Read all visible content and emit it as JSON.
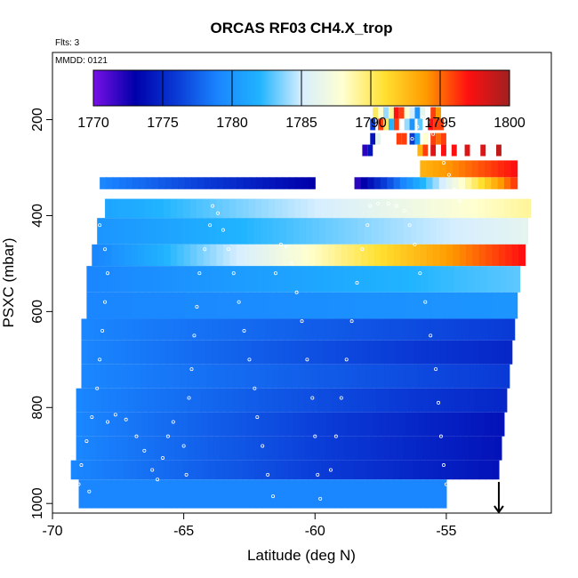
{
  "chart_data": {
    "type": "heatmap",
    "title": "ORCAS RF03 CH4.X_trop",
    "flights_note": "Flts: 3",
    "date_note": "MMDD: 0121",
    "xlabel": "Latitude (deg N)",
    "ylabel": "PSXC (mbar)",
    "xlim": [
      -70,
      -51
    ],
    "ylim": [
      1020,
      60
    ],
    "x_ticks": [
      -70,
      -65,
      -60,
      -55
    ],
    "y_ticks": [
      200,
      400,
      600,
      800,
      1000
    ],
    "colorbar": {
      "range": [
        1770,
        1800
      ],
      "ticks": [
        1770,
        1775,
        1780,
        1785,
        1790,
        1795,
        1800
      ],
      "colors": [
        "#7a10e6",
        "#0000aa",
        "#0a3ad6",
        "#1a86ff",
        "#20b4ff",
        "#d6eeff",
        "#ffffd0",
        "#ffe030",
        "#ff9a00",
        "#ff1010",
        "#a02020"
      ]
    },
    "bands": [
      {
        "p_top": 320,
        "p_bot": 345,
        "x_start": -68.2,
        "x_end": -60.0,
        "v_start": 1779.0,
        "v_end": 1773.0
      },
      {
        "p_top": 320,
        "p_bot": 345,
        "x_start": -58.5,
        "x_end": -52.3,
        "v_start": 1772.0,
        "v_end": 1796.0
      },
      {
        "p_top": 285,
        "p_bot": 320,
        "x_start": -56.0,
        "x_end": -52.3,
        "v_start": 1793.0,
        "v_end": 1797.0
      },
      {
        "p_top": 365,
        "p_bot": 405,
        "x_start": -68.0,
        "x_end": -51.8,
        "v_start": 1781.0,
        "v_end": 1789.0
      },
      {
        "p_top": 405,
        "p_bot": 460,
        "x_start": -68.3,
        "x_end": -51.9,
        "v_start": 1780.0,
        "v_end": 1786.0
      },
      {
        "p_top": 460,
        "p_bot": 505,
        "x_start": -68.5,
        "x_end": -52.0,
        "v_start": 1779.0,
        "v_end": 1797.0
      },
      {
        "p_top": 505,
        "p_bot": 560,
        "x_start": -68.7,
        "x_end": -52.2,
        "v_start": 1779.0,
        "v_end": 1783.0
      },
      {
        "p_top": 560,
        "p_bot": 615,
        "x_start": -68.7,
        "x_end": -52.3,
        "v_start": 1779.0,
        "v_end": 1780.0
      },
      {
        "p_top": 615,
        "p_bot": 660,
        "x_start": -68.9,
        "x_end": -52.4,
        "v_start": 1779.0,
        "v_end": 1776.0
      },
      {
        "p_top": 660,
        "p_bot": 710,
        "x_start": -68.9,
        "x_end": -52.5,
        "v_start": 1779.0,
        "v_end": 1775.0
      },
      {
        "p_top": 710,
        "p_bot": 760,
        "x_start": -68.9,
        "x_end": -52.6,
        "v_start": 1779.0,
        "v_end": 1776.0
      },
      {
        "p_top": 760,
        "p_bot": 810,
        "x_start": -69.1,
        "x_end": -52.7,
        "v_start": 1779.0,
        "v_end": 1775.0
      },
      {
        "p_top": 810,
        "p_bot": 860,
        "x_start": -69.1,
        "x_end": -52.8,
        "v_start": 1779.0,
        "v_end": 1774.0
      },
      {
        "p_top": 860,
        "p_bot": 910,
        "x_start": -69.1,
        "x_end": -52.9,
        "v_start": 1779.0,
        "v_end": 1774.0
      },
      {
        "p_top": 910,
        "p_bot": 950,
        "x_start": -69.3,
        "x_end": -53.0,
        "v_start": 1779.0,
        "v_end": 1774.0
      },
      {
        "p_top": 950,
        "p_bot": 1010,
        "x_start": -69.0,
        "x_end": -55.0,
        "v_start": 1779.0,
        "v_end": 1779.0
      }
    ],
    "cells": [
      {
        "x": -57.7,
        "p": 186,
        "v": 1790
      },
      {
        "x": -57.5,
        "p": 186,
        "v": 1788
      },
      {
        "x": -57.3,
        "p": 186,
        "v": 1784
      },
      {
        "x": -57.1,
        "p": 186,
        "v": 1789
      },
      {
        "x": -56.9,
        "p": 186,
        "v": 1797
      },
      {
        "x": -56.7,
        "p": 186,
        "v": 1796
      },
      {
        "x": -56.5,
        "p": 186,
        "v": 1788
      },
      {
        "x": -56.3,
        "p": 186,
        "v": 1785
      },
      {
        "x": -56.1,
        "p": 186,
        "v": 1780
      },
      {
        "x": -55.9,
        "p": 186,
        "v": 1786
      },
      {
        "x": -55.5,
        "p": 186,
        "v": 1796
      },
      {
        "x": -55.3,
        "p": 186,
        "v": 1794
      },
      {
        "x": -57.8,
        "p": 210,
        "v": 1776
      },
      {
        "x": -57.5,
        "p": 210,
        "v": 1796
      },
      {
        "x": -57.3,
        "p": 210,
        "v": 1790
      },
      {
        "x": -57.1,
        "p": 210,
        "v": 1782
      },
      {
        "x": -56.9,
        "p": 210,
        "v": 1796
      },
      {
        "x": -56.5,
        "p": 210,
        "v": 1784
      },
      {
        "x": -56.3,
        "p": 210,
        "v": 1780
      },
      {
        "x": -56.0,
        "p": 210,
        "v": 1783
      },
      {
        "x": -55.6,
        "p": 210,
        "v": 1797
      },
      {
        "x": -55.4,
        "p": 210,
        "v": 1796
      },
      {
        "x": -55.2,
        "p": 210,
        "v": 1796
      },
      {
        "x": -57.8,
        "p": 240,
        "v": 1774
      },
      {
        "x": -57.6,
        "p": 240,
        "v": 1786
      },
      {
        "x": -56.8,
        "p": 240,
        "v": 1796
      },
      {
        "x": -56.6,
        "p": 240,
        "v": 1796
      },
      {
        "x": -56.3,
        "p": 240,
        "v": 1776
      },
      {
        "x": -56.1,
        "p": 240,
        "v": 1781
      },
      {
        "x": -55.8,
        "p": 240,
        "v": 1788
      },
      {
        "x": -55.5,
        "p": 240,
        "v": 1796
      },
      {
        "x": -55.3,
        "p": 240,
        "v": 1795
      },
      {
        "x": -55.1,
        "p": 240,
        "v": 1796
      },
      {
        "x": -58.1,
        "p": 264,
        "v": 1772
      },
      {
        "x": -57.9,
        "p": 264,
        "v": 1774
      },
      {
        "x": -56.0,
        "p": 264,
        "v": 1793
      },
      {
        "x": -55.8,
        "p": 264,
        "v": 1796
      },
      {
        "x": -55.5,
        "p": 264,
        "v": 1798
      },
      {
        "x": -55.1,
        "p": 264,
        "v": 1797
      },
      {
        "x": -54.7,
        "p": 264,
        "v": 1797
      },
      {
        "x": -54.2,
        "p": 264,
        "v": 1798
      },
      {
        "x": -53.6,
        "p": 264,
        "v": 1798
      },
      {
        "x": -53.0,
        "p": 264,
        "v": 1799
      }
    ],
    "flight_track": {
      "note": "white circle markers showing flight track in (latitude, pressure)",
      "points": [
        [
          -68.4,
          360
        ],
        [
          -68.2,
          420
        ],
        [
          -68.0,
          470
        ],
        [
          -67.9,
          520
        ],
        [
          -68.0,
          580
        ],
        [
          -68.1,
          640
        ],
        [
          -68.2,
          700
        ],
        [
          -68.3,
          760
        ],
        [
          -68.5,
          820
        ],
        [
          -68.7,
          870
        ],
        [
          -68.9,
          920
        ],
        [
          -69.0,
          960
        ],
        [
          -68.6,
          975
        ],
        [
          -67.9,
          830
        ],
        [
          -67.6,
          815
        ],
        [
          -67.2,
          825
        ],
        [
          -66.8,
          860
        ],
        [
          -66.5,
          890
        ],
        [
          -66.2,
          930
        ],
        [
          -66.0,
          950
        ],
        [
          -65.8,
          905
        ],
        [
          -65.6,
          860
        ],
        [
          -65.4,
          830
        ],
        [
          -65.0,
          880
        ],
        [
          -64.9,
          940
        ],
        [
          -64.8,
          780
        ],
        [
          -64.7,
          720
        ],
        [
          -64.6,
          650
        ],
        [
          -64.5,
          590
        ],
        [
          -64.4,
          520
        ],
        [
          -64.2,
          470
        ],
        [
          -64.0,
          420
        ],
        [
          -63.9,
          380
        ],
        [
          -63.7,
          395
        ],
        [
          -63.5,
          430
        ],
        [
          -63.3,
          470
        ],
        [
          -63.1,
          520
        ],
        [
          -62.9,
          580
        ],
        [
          -62.7,
          640
        ],
        [
          -62.5,
          700
        ],
        [
          -62.3,
          760
        ],
        [
          -62.2,
          820
        ],
        [
          -62.0,
          880
        ],
        [
          -61.8,
          940
        ],
        [
          -61.6,
          985
        ],
        [
          -61.5,
          520
        ],
        [
          -61.3,
          460
        ],
        [
          -61.1,
          465
        ],
        [
          -60.9,
          500
        ],
        [
          -60.7,
          560
        ],
        [
          -60.5,
          620
        ],
        [
          -60.3,
          700
        ],
        [
          -60.1,
          780
        ],
        [
          -60.0,
          860
        ],
        [
          -59.9,
          940
        ],
        [
          -59.8,
          990
        ],
        [
          -59.4,
          930
        ],
        [
          -59.2,
          860
        ],
        [
          -59.0,
          780
        ],
        [
          -58.8,
          700
        ],
        [
          -58.6,
          620
        ],
        [
          -58.4,
          540
        ],
        [
          -58.2,
          470
        ],
        [
          -58.0,
          420
        ],
        [
          -57.9,
          380
        ],
        [
          -57.6,
          375
        ],
        [
          -57.2,
          375
        ],
        [
          -56.9,
          380
        ],
        [
          -56.6,
          390
        ],
        [
          -56.4,
          420
        ],
        [
          -56.2,
          460
        ],
        [
          -56.0,
          520
        ],
        [
          -55.8,
          580
        ],
        [
          -55.6,
          650
        ],
        [
          -55.4,
          720
        ],
        [
          -55.3,
          790
        ],
        [
          -55.2,
          860
        ],
        [
          -55.1,
          920
        ],
        [
          -55.0,
          960
        ],
        [
          -56.5,
          270
        ],
        [
          -56.3,
          240
        ],
        [
          -56.1,
          215
        ],
        [
          -55.9,
          195
        ],
        [
          -55.7,
          205
        ],
        [
          -55.5,
          230
        ],
        [
          -55.3,
          260
        ],
        [
          -55.1,
          290
        ],
        [
          -54.9,
          315
        ],
        [
          -54.7,
          345
        ],
        [
          -54.5,
          370
        ]
      ]
    },
    "arrow": {
      "x": -53.0,
      "p_top": 955,
      "p_bot": 1020
    }
  }
}
